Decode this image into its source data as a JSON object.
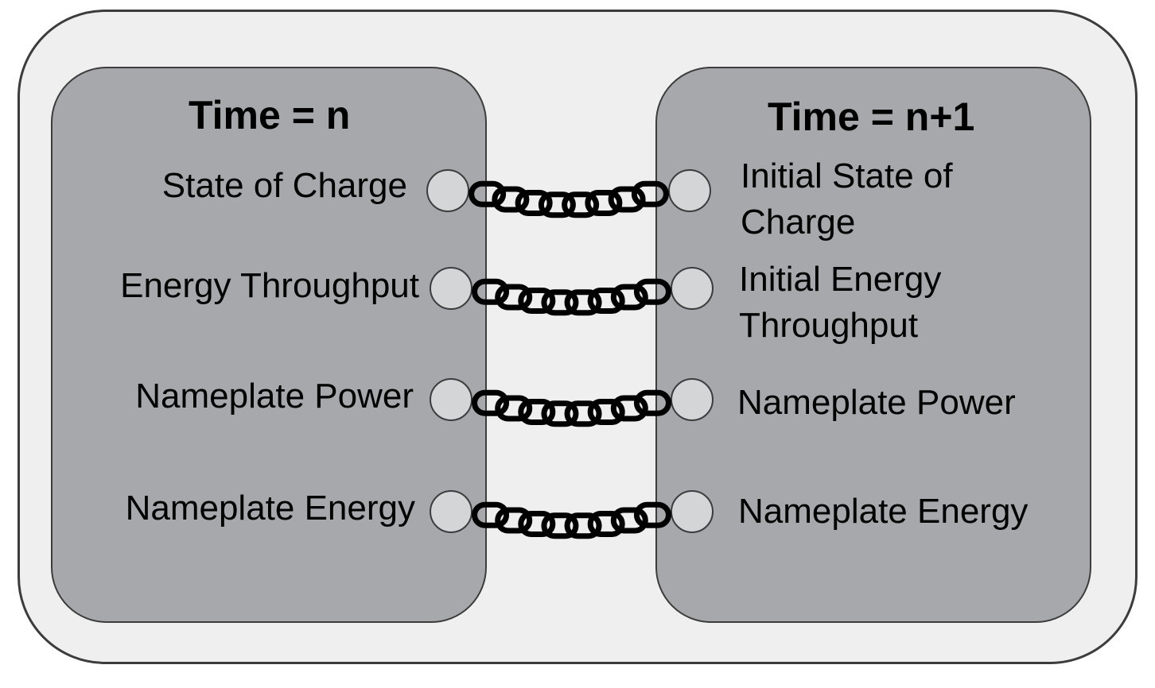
{
  "left_block": {
    "title": "Time = n",
    "items": [
      "State of Charge",
      "Energy Throughput",
      "Nameplate Power",
      "Nameplate Energy"
    ]
  },
  "right_block": {
    "title": "Time = n+1",
    "items": [
      "Initial State of Charge",
      "Initial Energy Throughput",
      "Nameplate Power",
      "Nameplate Energy"
    ]
  },
  "icons": [
    "connector-port-icon",
    "chain-link-icon"
  ],
  "colors": {
    "outer_fill": "#efefef",
    "panel_fill": "#a6a8ab",
    "port_fill": "#d4d5d7",
    "outline": "#3c3c3c",
    "chain": "#000000"
  }
}
